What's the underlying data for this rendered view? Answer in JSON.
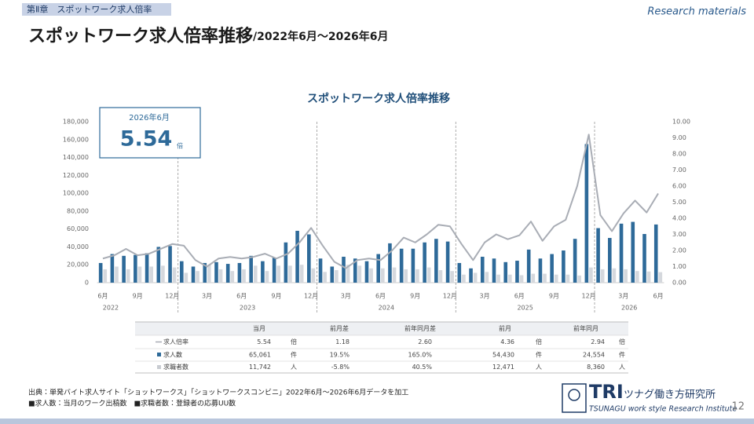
{
  "header": {
    "chapter": "第Ⅱ章　スポットワーク求人倍率",
    "tag": "Research materials",
    "title": "スポットワーク求人倍率推移",
    "subtitle": "/2022年6月～2026年6月"
  },
  "chart_data": {
    "type": "bar",
    "title": "スポットワーク求人倍率推移",
    "callout": {
      "title": "2026年6月",
      "value": 5.54,
      "unit": "倍"
    },
    "categories": [
      "6月",
      null,
      null,
      "9月",
      null,
      null,
      "12月",
      null,
      null,
      "3月",
      null,
      null,
      "6月",
      null,
      null,
      "9月",
      null,
      null,
      "12月",
      null,
      null,
      "3月",
      null,
      null,
      "6月",
      null,
      null,
      "9月",
      null,
      null,
      "12月",
      null,
      null,
      "3月",
      null,
      null,
      "6月",
      null,
      null,
      "9月",
      null,
      null,
      "12月",
      null,
      null,
      "3月",
      null,
      null,
      "6月"
    ],
    "years": [
      "2022",
      "2023",
      "2024",
      "2025",
      "2026"
    ],
    "ylim": [
      0,
      180000
    ],
    "yticks": [
      0,
      {
        "value": 20000,
        "label": "20,000"
      },
      {
        "value": 40000,
        "label": "40,000"
      },
      {
        "value": 60000,
        "label": "60,000"
      },
      {
        "value": 80000,
        "label": "80,000"
      },
      {
        "value": 100000,
        "label": "100,000"
      },
      {
        "value": 120000,
        "label": "120,000"
      },
      {
        "value": 140000,
        "label": "140,000"
      },
      {
        "value": 160000,
        "label": "160,000"
      },
      {
        "value": 180000,
        "label": "180,000"
      }
    ],
    "y2lim": [
      0,
      10
    ],
    "y2ticks": [
      {
        "value": 0,
        "label": "0.00"
      },
      {
        "value": 1,
        "label": "1.00"
      },
      {
        "value": 2,
        "label": "2.00"
      },
      {
        "value": 3,
        "label": "3.00"
      },
      {
        "value": 4,
        "label": "4.00"
      },
      {
        "value": 5,
        "label": "5.00"
      },
      {
        "value": 6,
        "label": "6.00"
      },
      {
        "value": 7,
        "label": "7.00"
      },
      {
        "value": 8,
        "label": "8.00"
      },
      {
        "value": 9,
        "label": "9.00"
      },
      {
        "value": 10,
        "label": "10.00"
      }
    ],
    "series": [
      {
        "name": "求人倍率",
        "type": "line",
        "axis": "y2",
        "color": "#a9adb5",
        "values": [
          1.5,
          1.7,
          2.1,
          1.7,
          1.8,
          2.1,
          2.4,
          2.3,
          1.4,
          1.0,
          1.5,
          1.6,
          1.5,
          1.6,
          1.8,
          1.5,
          1.8,
          2.5,
          3.4,
          2.3,
          1.3,
          0.9,
          1.4,
          1.5,
          1.4,
          2.0,
          2.8,
          2.5,
          3.0,
          3.6,
          3.5,
          2.4,
          1.4,
          2.5,
          3.0,
          2.7,
          2.94,
          3.8,
          2.6,
          3.5,
          3.9,
          6.0,
          9.2,
          4.2,
          3.2,
          4.3,
          5.1,
          4.36,
          5.54
        ]
      },
      {
        "name": "求人数",
        "type": "bar",
        "color": "#2e6a99",
        "values": [
          22000,
          32000,
          30000,
          31000,
          33000,
          40000,
          41000,
          24000,
          18000,
          22000,
          23000,
          21000,
          22000,
          30000,
          24000,
          28000,
          45000,
          58000,
          54000,
          27000,
          18000,
          29000,
          27000,
          24000,
          32000,
          44000,
          38000,
          38000,
          45000,
          49000,
          46000,
          22000,
          16000,
          29000,
          27000,
          23000,
          24554,
          37000,
          27000,
          32000,
          36000,
          49000,
          155000,
          61000,
          50000,
          66000,
          68000,
          54430,
          65061
        ]
      },
      {
        "name": "求職者数",
        "type": "bar",
        "color": "#d5d8dd",
        "values": [
          15000,
          18000,
          15000,
          18000,
          18000,
          19000,
          17000,
          11000,
          13000,
          20000,
          15000,
          13000,
          15000,
          19000,
          13000,
          19000,
          19000,
          20000,
          16000,
          12000,
          14000,
          20000,
          19000,
          16000,
          16000,
          17000,
          15000,
          15000,
          17000,
          14000,
          13000,
          9000,
          11000,
          12000,
          9000,
          9000,
          8360,
          10000,
          10000,
          9000,
          9000,
          8000,
          17000,
          15000,
          16000,
          15000,
          13000,
          12471,
          11742
        ]
      }
    ]
  },
  "table": {
    "columns": [
      "当月",
      "前月差",
      "前年同月差",
      "前月",
      "前年同月"
    ],
    "rows": [
      [
        "5.54",
        "倍",
        "1.18",
        "2.60",
        "4.36",
        "倍",
        "2.94",
        "倍"
      ],
      [
        "65,061",
        "件",
        "19.5%",
        "165.0%",
        "54,430",
        "件",
        "24,554",
        "件"
      ],
      [
        "11,742",
        "人",
        "-5.8%",
        "40.5%",
        "12,471",
        "人",
        "8,360",
        "人"
      ]
    ]
  },
  "footer": {
    "source": "出典：単発バイト求人サイト「ショットワークス」「ショットワークスコンビニ」2022年6月～2026年6月データを加工",
    "note": "■求人数：当月のワーク出稿数　■求職者数：登録者の応募UU数",
    "page": "12"
  },
  "logo": {
    "mark": "TRI",
    "name": "ツナグ働き方研究所",
    "english": "TSUNAGU work style Research Institute"
  }
}
